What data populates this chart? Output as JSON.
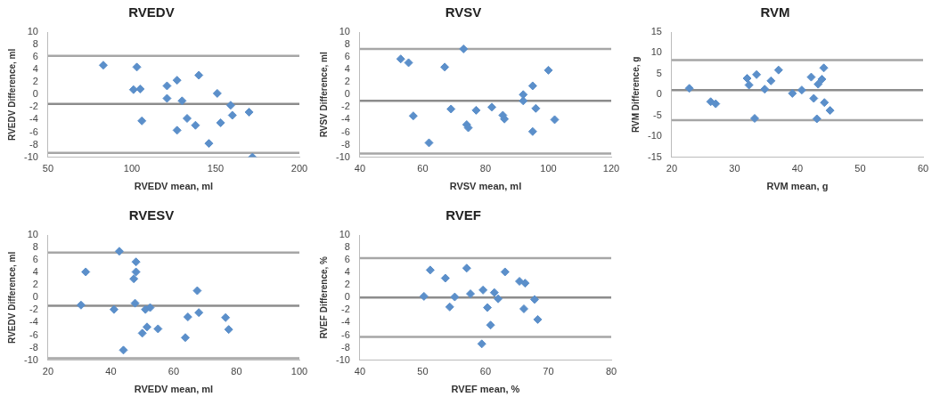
{
  "chart_data": [
    {
      "type": "scatter",
      "title": "RVEDV",
      "xlabel": "RVEDV mean, ml",
      "ylabel": "RVEDV Difference, ml",
      "marker": "diamond",
      "grid": false,
      "legend": false,
      "color": "#5b8fca",
      "x": [
        83,
        103,
        101,
        105,
        106,
        121,
        121,
        127,
        127,
        130,
        133,
        138,
        140,
        146,
        151,
        153,
        159,
        160,
        170,
        172
      ],
      "values": [
        4.7,
        4.4,
        0.8,
        0.9,
        -4.2,
        1.4,
        -0.6,
        2.3,
        -5.7,
        -1.0,
        -3.8,
        -4.9,
        3.1,
        -7.8,
        0.2,
        -4.5,
        -1.7,
        -3.3,
        -2.8,
        -10
      ],
      "xlim": [
        50,
        200
      ],
      "xticks": [
        50,
        100,
        150,
        200
      ],
      "ylim": [
        -10,
        10
      ],
      "yticks": [
        -10,
        -8,
        -6,
        -4,
        -2,
        0,
        2,
        4,
        6,
        8,
        10
      ],
      "ref_lines": [
        {
          "axis": "y",
          "value": 6.2,
          "color": "#a6a6a6"
        },
        {
          "axis": "y",
          "value": -1.5,
          "color": "#8c8c8c"
        },
        {
          "axis": "y",
          "value": -9.3,
          "color": "#a6a6a6"
        }
      ]
    },
    {
      "type": "scatter",
      "title": "RVSV",
      "xlabel": "RVSV mean, ml",
      "ylabel": "RVSV Difference, ml",
      "marker": "diamond",
      "grid": false,
      "legend": false,
      "color": "#5b8fca",
      "x": [
        53,
        55.5,
        57,
        62,
        67,
        69,
        73,
        74,
        74.5,
        77,
        82,
        85.5,
        86,
        92,
        92,
        95,
        95,
        96,
        100,
        102
      ],
      "values": [
        5.7,
        5.1,
        -3.4,
        -7.7,
        4.4,
        -2.3,
        7.3,
        -4.8,
        -5.3,
        -2.5,
        -2.0,
        -3.3,
        -3.9,
        0,
        -1.0,
        1.4,
        -5.9,
        -2.2,
        3.9,
        -4.0
      ],
      "xlim": [
        40,
        120
      ],
      "xticks": [
        40,
        60,
        80,
        100,
        120
      ],
      "ylim": [
        -10,
        10
      ],
      "yticks": [
        -10,
        -8,
        -6,
        -4,
        -2,
        0,
        2,
        4,
        6,
        8,
        10
      ],
      "ref_lines": [
        {
          "axis": "y",
          "value": 7.3,
          "color": "#a6a6a6"
        },
        {
          "axis": "y",
          "value": -1.0,
          "color": "#8c8c8c"
        },
        {
          "axis": "y",
          "value": -9.4,
          "color": "#a6a6a6"
        }
      ]
    },
    {
      "type": "scatter",
      "title": "RVM",
      "xlabel": "RVM mean, g",
      "ylabel": "RVM Difference, g",
      "marker": "diamond",
      "grid": false,
      "legend": false,
      "color": "#5b8fca",
      "x": [
        22.8,
        26.2,
        27,
        32,
        32.3,
        33.2,
        33.5,
        34.8,
        35.8,
        37,
        39.2,
        40.7,
        42.2,
        42.6,
        43.1,
        43.3,
        43.9,
        44.2,
        44.3,
        45.2
      ],
      "values": [
        1.5,
        -1.7,
        -2.2,
        3.9,
        2.3,
        -5.7,
        4.8,
        1.3,
        3.3,
        5.9,
        0.3,
        1.1,
        4.2,
        -0.9,
        -5.8,
        2.5,
        3.7,
        6.4,
        -1.9,
        -3.8
      ],
      "xlim": [
        20,
        60
      ],
      "xticks": [
        20,
        30,
        40,
        50,
        60
      ],
      "ylim": [
        -15,
        15
      ],
      "yticks": [
        -15,
        -10,
        -5,
        0,
        5,
        10,
        15
      ],
      "ref_lines": [
        {
          "axis": "y",
          "value": 8.3,
          "color": "#a6a6a6"
        },
        {
          "axis": "y",
          "value": 1.1,
          "color": "#8c8c8c"
        },
        {
          "axis": "y",
          "value": -6.1,
          "color": "#a6a6a6"
        }
      ]
    },
    {
      "type": "scatter",
      "title": "RVESV",
      "xlabel": "RVEDV mean, ml",
      "ylabel": "RVEDV Difference, ml",
      "marker": "diamond",
      "grid": false,
      "legend": false,
      "color": "#5b8fca",
      "x": [
        30.5,
        32,
        41,
        42.7,
        44,
        47.3,
        47.7,
        48,
        48,
        50,
        51,
        51.5,
        52.5,
        55,
        63.7,
        64.5,
        67.5,
        68,
        76.5,
        77.5
      ],
      "values": [
        -1.2,
        4.1,
        -1.9,
        7.4,
        -8.4,
        3.0,
        -0.9,
        5.7,
        4.1,
        -5.7,
        -1.9,
        -4.7,
        -1.6,
        -5.0,
        -6.4,
        -3.1,
        1.1,
        -2.4,
        -3.2,
        -5.1
      ],
      "xlim": [
        20,
        100
      ],
      "xticks": [
        20,
        40,
        60,
        80,
        100
      ],
      "ylim": [
        -10,
        10
      ],
      "yticks": [
        -10,
        -8,
        -6,
        -4,
        -2,
        0,
        2,
        4,
        6,
        8,
        10
      ],
      "ref_lines": [
        {
          "axis": "y",
          "value": 7.2,
          "color": "#a6a6a6"
        },
        {
          "axis": "y",
          "value": -1.3,
          "color": "#8c8c8c"
        },
        {
          "axis": "y",
          "value": -9.7,
          "color": "#a6a6a6"
        }
      ]
    },
    {
      "type": "scatter",
      "title": "RVEF",
      "xlabel": "RVEF mean, %",
      "ylabel": "RVEF Difference, %",
      "marker": "diamond",
      "grid": false,
      "legend": false,
      "color": "#5b8fca",
      "x": [
        50.2,
        51.2,
        53.6,
        54.3,
        55.1,
        57,
        57.6,
        59.4,
        59.6,
        60.3,
        60.8,
        61.4,
        62,
        63.1,
        65.4,
        66.1,
        66.3,
        67.8,
        68.3
      ],
      "values": [
        0.2,
        4.4,
        3.1,
        -1.5,
        0.1,
        4.7,
        0.6,
        -7.4,
        1.2,
        -1.6,
        -4.4,
        0.8,
        -0.2,
        4.1,
        2.6,
        -1.8,
        2.3,
        -0.3,
        -3.5
      ],
      "xlim": [
        40,
        80
      ],
      "xticks": [
        40,
        50,
        60,
        70,
        80
      ],
      "ylim": [
        -10,
        10
      ],
      "yticks": [
        -10,
        -8,
        -6,
        -4,
        -2,
        0,
        2,
        4,
        6,
        8,
        10
      ],
      "ref_lines": [
        {
          "axis": "y",
          "value": 6.3,
          "color": "#a6a6a6"
        },
        {
          "axis": "y",
          "value": 0,
          "color": "#8c8c8c"
        },
        {
          "axis": "y",
          "value": -6.3,
          "color": "#a6a6a6"
        }
      ]
    }
  ]
}
